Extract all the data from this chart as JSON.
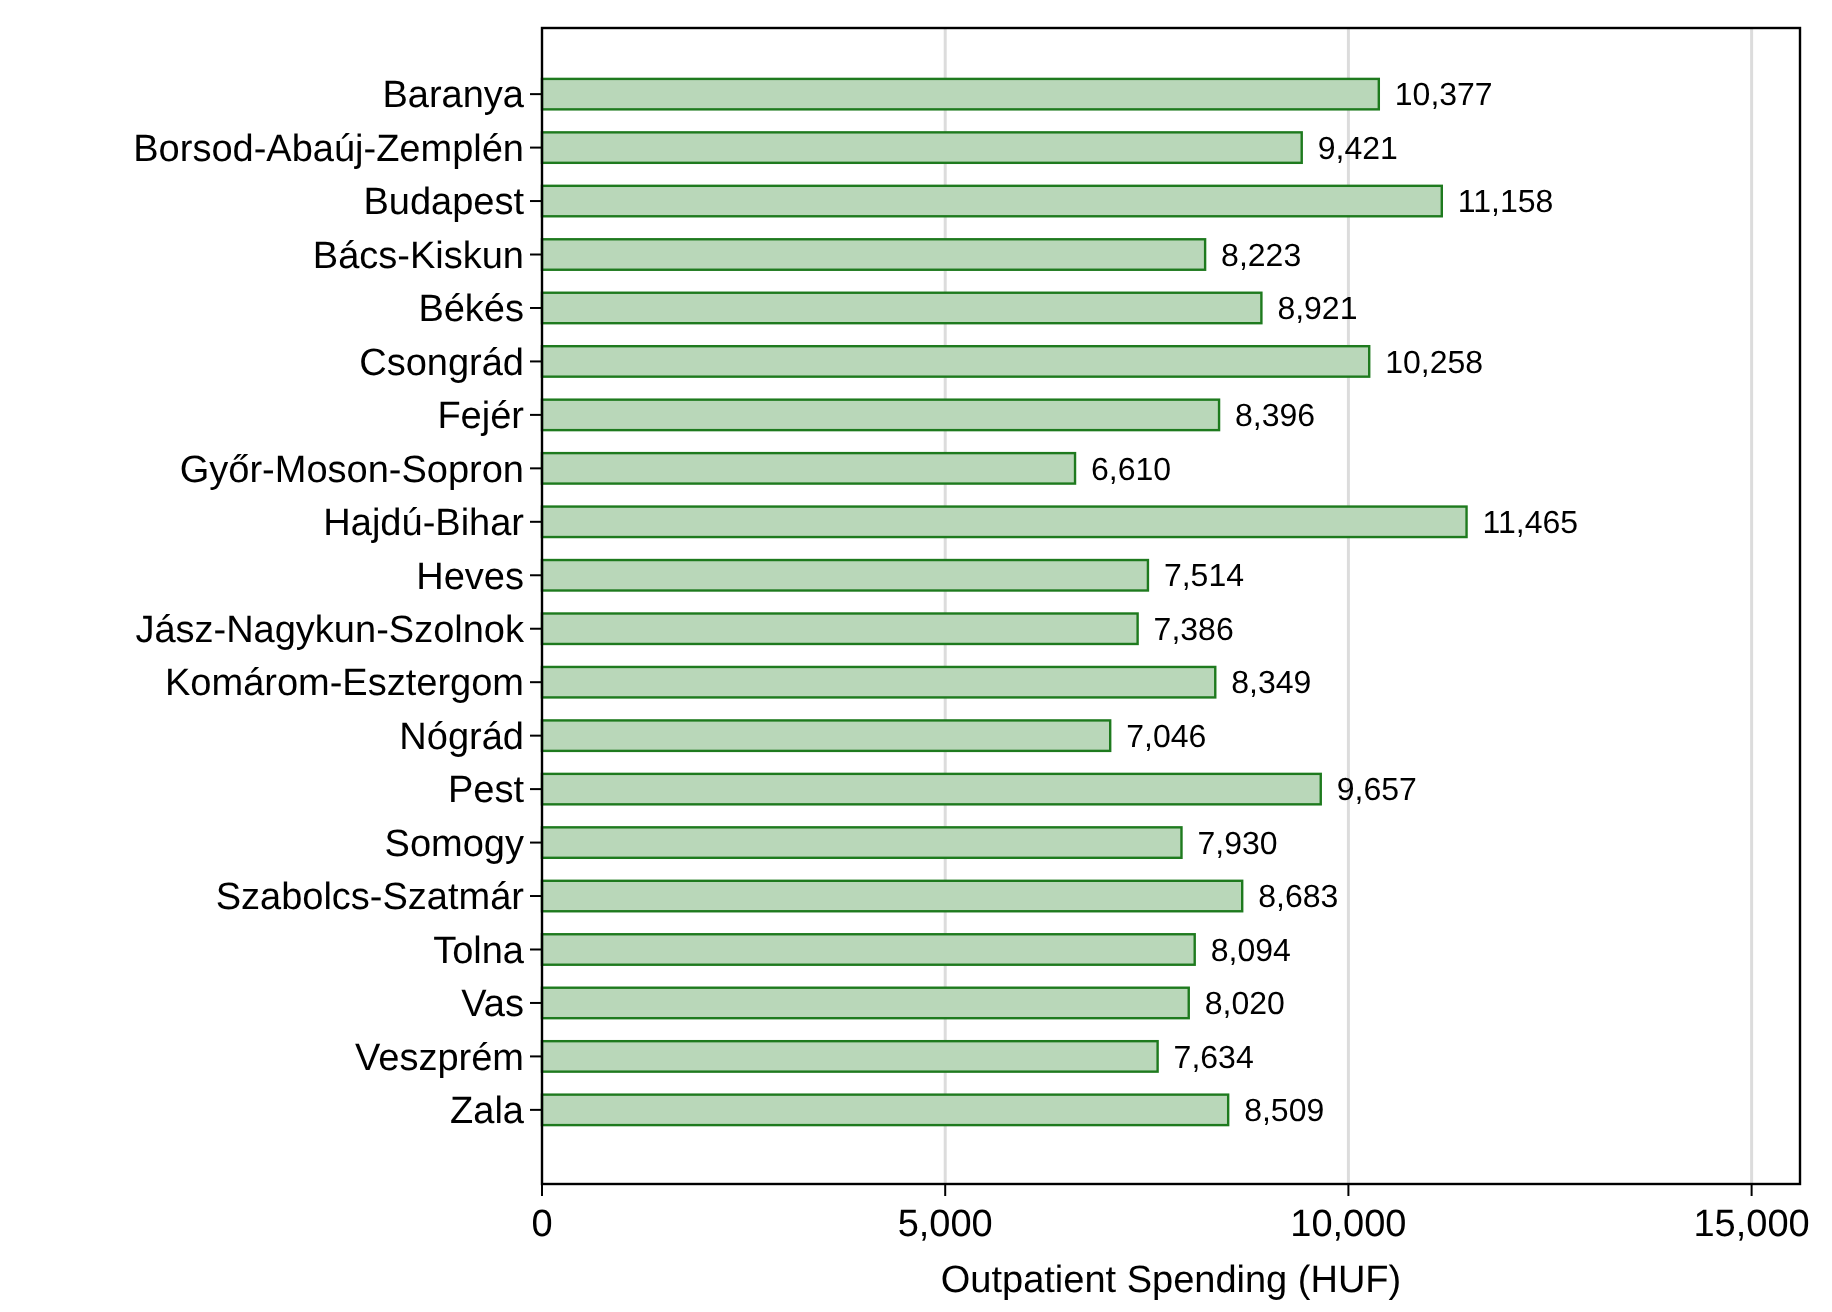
{
  "chart_data": {
    "type": "bar",
    "orientation": "horizontal",
    "xlabel": "Outpatient Spending (HUF)",
    "categories": [
      "Baranya",
      "Borsod-Abaúj-Zemplén",
      "Budapest",
      "Bács-Kiskun",
      "Békés",
      "Csongrád",
      "Fejér",
      "Győr-Moson-Sopron",
      "Hajdú-Bihar",
      "Heves",
      "Jász-Nagykun-Szolnok",
      "Komárom-Esztergom",
      "Nógrád",
      "Pest",
      "Somogy",
      "Szabolcs-Szatmár",
      "Tolna",
      "Vas",
      "Veszprém",
      "Zala"
    ],
    "values": [
      10377,
      9421,
      11158,
      8223,
      8921,
      10258,
      8396,
      6610,
      11465,
      7514,
      7386,
      8349,
      7046,
      9657,
      7930,
      8683,
      8094,
      8020,
      7634,
      8509
    ],
    "value_labels": [
      "10,377",
      "9,421",
      "11,158",
      "8,223",
      "8,921",
      "10,258",
      "8,396",
      "6,610",
      "11,465",
      "7,514",
      "7,386",
      "8,349",
      "7,046",
      "9,657",
      "7,930",
      "8,683",
      "8,094",
      "8,020",
      "7,634",
      "8,509"
    ],
    "color": "#b9d7b9",
    "xlim": [
      0,
      15600
    ],
    "xticks": [
      {
        "value": 0,
        "label": "0"
      },
      {
        "value": 5000,
        "label": "5,000"
      },
      {
        "value": 10000,
        "label": "10,000"
      },
      {
        "value": 15000,
        "label": "15,000"
      }
    ],
    "grid": "x"
  }
}
